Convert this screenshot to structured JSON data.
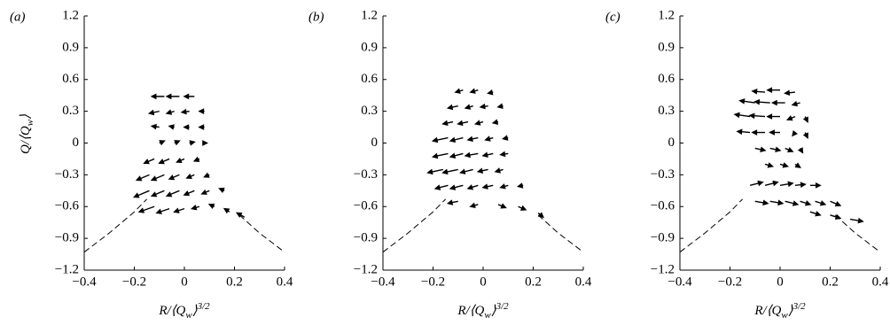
{
  "chart_data": [
    {
      "type": "quiver",
      "panel_label": "(a)",
      "ylabel": {
        "base": "Q/⟨Q",
        "sub": "w",
        "rest": "⟩"
      },
      "xlabel": {
        "base": "R/⟨Q",
        "sub": "w",
        "rest": "⟩",
        "sup": "3/2"
      },
      "xlim": [
        -0.4,
        0.4
      ],
      "ylim": [
        -1.2,
        1.2
      ],
      "xticks": [
        {
          "value": -0.4,
          "label": "−0.4"
        },
        {
          "value": -0.2,
          "label": "−0.2"
        },
        0,
        0.2,
        0.4
      ],
      "yticks": [
        {
          "value": -1.2,
          "label": "−1.2"
        },
        {
          "value": -0.9,
          "label": "−0.9"
        },
        {
          "value": -0.6,
          "label": "−0.6"
        },
        {
          "value": -0.3,
          "label": "−0.3"
        },
        0,
        0.3,
        0.6,
        0.9,
        1.2
      ],
      "curve": {
        "x": [
          -0.4,
          -0.3,
          -0.2,
          -0.15,
          0,
          0.22,
          0.3,
          0.4
        ],
        "y": [
          -1.03,
          -0.85,
          -0.65,
          -0.53,
          null,
          -0.68,
          -0.85,
          -1.03
        ]
      },
      "arrows": {
        "x": [
          -0.08,
          -0.02,
          0.04,
          -0.1,
          -0.04,
          0.02,
          0.08,
          -0.1,
          -0.04,
          0.02,
          0.08,
          -0.1,
          -0.04,
          0.02,
          0.08,
          -0.12,
          -0.06,
          0,
          0.06,
          -0.14,
          -0.08,
          -0.02,
          0.04,
          0.1,
          -0.14,
          -0.08,
          -0.02,
          0.04,
          0.1,
          0.16,
          -0.12,
          -0.06,
          0,
          0.06,
          0.12,
          0.18,
          0.24
        ],
        "y": [
          0.44,
          0.44,
          0.44,
          0.3,
          0.3,
          0.3,
          0.3,
          0.15,
          0.15,
          0.15,
          0.15,
          0,
          0,
          0,
          0,
          -0.15,
          -0.15,
          -0.15,
          -0.15,
          -0.3,
          -0.3,
          -0.3,
          -0.3,
          -0.3,
          -0.45,
          -0.45,
          -0.45,
          -0.45,
          -0.45,
          -0.45,
          -0.6,
          -0.62,
          -0.62,
          -0.6,
          -0.6,
          -0.65,
          -0.7
        ],
        "u": [
          -0.05,
          -0.05,
          -0.04,
          -0.04,
          -0.03,
          -0.03,
          -0.02,
          -0.03,
          -0.02,
          -0.02,
          -0.02,
          0.02,
          0.02,
          0.02,
          0.01,
          -0.04,
          -0.04,
          -0.03,
          -0.02,
          -0.05,
          -0.05,
          -0.04,
          -0.03,
          -0.02,
          -0.06,
          -0.05,
          -0.05,
          -0.04,
          -0.03,
          -0.02,
          -0.06,
          -0.05,
          -0.04,
          -0.03,
          -0.02,
          -0.02,
          -0.03
        ],
        "v": [
          0,
          0,
          0,
          -0.02,
          -0.02,
          -0.01,
          0,
          0.01,
          0.01,
          0,
          0,
          0.02,
          0.02,
          0.01,
          0,
          -0.04,
          -0.04,
          -0.03,
          -0.02,
          -0.05,
          -0.05,
          -0.04,
          -0.03,
          -0.02,
          -0.06,
          -0.05,
          -0.05,
          -0.04,
          -0.03,
          0.02,
          -0.05,
          -0.04,
          -0.03,
          -0.02,
          0.02,
          0.03,
          0.04
        ]
      }
    },
    {
      "type": "quiver",
      "panel_label": "(b)",
      "xlabel": {
        "base": "R/⟨Q",
        "sub": "w",
        "rest": "⟩",
        "sup": "3/2"
      },
      "xlim": [
        -0.4,
        0.4
      ],
      "ylim": [
        -1.2,
        1.2
      ],
      "xticks": [
        {
          "value": -0.4,
          "label": "−0.4"
        },
        {
          "value": -0.2,
          "label": "−0.2"
        },
        0,
        0.2,
        0.4
      ],
      "yticks": [
        {
          "value": -1.2,
          "label": "−1.2"
        },
        {
          "value": -0.9,
          "label": "−0.9"
        },
        {
          "value": -0.6,
          "label": "−0.6"
        },
        {
          "value": -0.3,
          "label": "−0.3"
        },
        0,
        0.3,
        0.6,
        0.9,
        1.2
      ],
      "curve": {
        "x": [
          -0.4,
          -0.3,
          -0.2,
          -0.15,
          0,
          0.22,
          0.3,
          0.4
        ],
        "y": [
          -1.03,
          -0.85,
          -0.65,
          -0.53,
          null,
          -0.68,
          -0.85,
          -1.03
        ]
      },
      "arrows": {
        "x": [
          -0.08,
          -0.02,
          0.04,
          -0.1,
          -0.04,
          0.02,
          0.08,
          -0.12,
          -0.06,
          0,
          0.06,
          -0.14,
          -0.08,
          -0.02,
          0.04,
          0.1,
          -0.14,
          -0.08,
          -0.02,
          0.04,
          0.1,
          -0.16,
          -0.1,
          -0.04,
          0.02,
          0.08,
          -0.14,
          -0.08,
          -0.02,
          0.04,
          0.1,
          0.16,
          -0.1,
          -0.02,
          0.06,
          0.14,
          0.22
        ],
        "y": [
          0.5,
          0.5,
          0.48,
          0.35,
          0.35,
          0.35,
          0.35,
          0.2,
          0.2,
          0.2,
          0.2,
          0.05,
          0.05,
          0.05,
          0.05,
          0.05,
          -0.1,
          -0.1,
          -0.1,
          -0.1,
          -0.1,
          -0.25,
          -0.25,
          -0.25,
          -0.25,
          -0.25,
          -0.4,
          -0.4,
          -0.4,
          -0.4,
          -0.4,
          -0.4,
          -0.55,
          -0.58,
          -0.58,
          -0.6,
          -0.66
        ],
        "u": [
          -0.03,
          -0.03,
          -0.02,
          -0.04,
          -0.03,
          -0.03,
          -0.02,
          -0.04,
          -0.04,
          -0.03,
          -0.02,
          -0.06,
          -0.05,
          -0.04,
          -0.03,
          -0.02,
          -0.06,
          -0.05,
          -0.05,
          -0.04,
          -0.03,
          -0.06,
          -0.06,
          -0.05,
          -0.04,
          -0.03,
          -0.05,
          -0.05,
          -0.04,
          -0.04,
          -0.03,
          -0.02,
          -0.04,
          -0.03,
          0.03,
          0.03,
          0.02
        ],
        "v": [
          -0.02,
          -0.02,
          -0.01,
          -0.02,
          -0.02,
          -0.01,
          -0.01,
          -0.02,
          -0.02,
          -0.02,
          -0.01,
          -0.03,
          -0.03,
          -0.02,
          -0.02,
          -0.01,
          -0.03,
          -0.03,
          -0.02,
          -0.02,
          -0.01,
          -0.03,
          -0.03,
          -0.03,
          -0.02,
          -0.02,
          -0.03,
          -0.03,
          -0.03,
          -0.02,
          -0.02,
          -0.01,
          -0.02,
          -0.02,
          -0.03,
          -0.03,
          -0.04
        ]
      }
    },
    {
      "type": "quiver",
      "panel_label": "(c)",
      "xlabel": {
        "base": "R/⟨Q",
        "sub": "w",
        "rest": "⟩",
        "sup": "3/2"
      },
      "xlim": [
        -0.4,
        0.4
      ],
      "ylim": [
        -1.2,
        1.2
      ],
      "xticks": [
        {
          "value": -0.4,
          "label": "−0.4"
        },
        {
          "value": -0.2,
          "label": "−0.2"
        },
        0,
        0.2,
        0.4
      ],
      "yticks": [
        {
          "value": -1.2,
          "label": "−1.2"
        },
        {
          "value": -0.9,
          "label": "−0.9"
        },
        {
          "value": -0.6,
          "label": "−0.6"
        },
        {
          "value": -0.3,
          "label": "−0.3"
        },
        0,
        0.3,
        0.6,
        0.9,
        1.2
      ],
      "curve": {
        "x": [
          -0.4,
          -0.3,
          -0.2,
          -0.15,
          0,
          0.22,
          0.3,
          0.4
        ],
        "y": [
          -1.03,
          -0.85,
          -0.65,
          -0.53,
          null,
          -0.68,
          -0.85,
          -1.03
        ]
      },
      "arrows": {
        "x": [
          -0.06,
          0,
          0.06,
          -0.1,
          -0.04,
          0.02,
          0.08,
          -0.12,
          -0.06,
          0,
          0.06,
          0.1,
          -0.12,
          -0.06,
          0,
          0.06,
          0.1,
          -0.1,
          -0.04,
          0.02,
          0.08,
          -0.06,
          0,
          0.06,
          -0.12,
          -0.06,
          0,
          0.06,
          0.12,
          -0.1,
          -0.04,
          0.02,
          0.08,
          0.14,
          0.2,
          0.12,
          0.2,
          0.28
        ],
        "y": [
          0.48,
          0.5,
          0.48,
          0.38,
          0.38,
          0.38,
          0.38,
          0.25,
          0.25,
          0.25,
          0.25,
          0.25,
          0.1,
          0.1,
          0.1,
          0.1,
          0.1,
          -0.05,
          -0.05,
          -0.05,
          -0.05,
          -0.2,
          -0.2,
          -0.2,
          -0.4,
          -0.4,
          -0.4,
          -0.4,
          -0.4,
          -0.55,
          -0.55,
          -0.55,
          -0.55,
          -0.55,
          -0.55,
          -0.65,
          -0.68,
          -0.72
        ],
        "u": [
          -0.05,
          -0.05,
          -0.04,
          -0.06,
          -0.06,
          -0.05,
          -0.03,
          -0.06,
          -0.06,
          -0.05,
          -0.03,
          0.01,
          -0.05,
          -0.05,
          -0.04,
          -0.01,
          0.01,
          0.04,
          0.04,
          0.03,
          0.01,
          0.03,
          0.03,
          0.02,
          0.05,
          0.05,
          0.05,
          0.04,
          0.04,
          0.05,
          0.05,
          0.05,
          0.04,
          0.04,
          0.04,
          0.04,
          0.04,
          0.05
        ],
        "v": [
          0.01,
          0,
          -0.01,
          0.02,
          0.01,
          0,
          -0.02,
          0.02,
          0.01,
          0,
          -0.03,
          -0.05,
          0.01,
          0,
          0,
          -0.03,
          -0.05,
          -0.02,
          -0.02,
          -0.03,
          -0.04,
          -0.02,
          -0.02,
          -0.03,
          0.03,
          0.03,
          0.02,
          0.01,
          0,
          -0.02,
          -0.02,
          -0.03,
          -0.03,
          -0.03,
          -0.04,
          -0.03,
          -0.03,
          -0.02
        ]
      }
    }
  ]
}
